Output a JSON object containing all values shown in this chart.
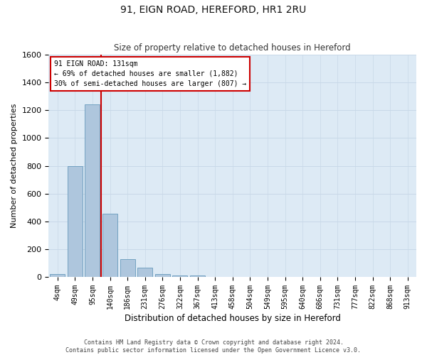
{
  "title": "91, EIGN ROAD, HEREFORD, HR1 2RU",
  "subtitle": "Size of property relative to detached houses in Hereford",
  "xlabel": "Distribution of detached houses by size in Hereford",
  "ylabel": "Number of detached properties",
  "bar_labels": [
    "4sqm",
    "49sqm",
    "95sqm",
    "140sqm",
    "186sqm",
    "231sqm",
    "276sqm",
    "322sqm",
    "367sqm",
    "413sqm",
    "458sqm",
    "504sqm",
    "549sqm",
    "595sqm",
    "640sqm",
    "686sqm",
    "731sqm",
    "777sqm",
    "822sqm",
    "868sqm",
    "913sqm"
  ],
  "bar_values": [
    20,
    800,
    1240,
    455,
    130,
    65,
    22,
    10,
    10,
    0,
    0,
    0,
    0,
    0,
    0,
    0,
    0,
    0,
    0,
    0,
    0
  ],
  "bar_color": "#aec6dd",
  "bar_edge_color": "#6699bb",
  "annotation_line0": "91 EIGN ROAD: 131sqm",
  "annotation_line1": "← 69% of detached houses are smaller (1,882)",
  "annotation_line2": "30% of semi-detached houses are larger (807) →",
  "annotation_box_facecolor": "#ffffff",
  "annotation_box_edgecolor": "#cc0000",
  "vline_color": "#cc0000",
  "ylim": [
    0,
    1600
  ],
  "yticks": [
    0,
    200,
    400,
    600,
    800,
    1000,
    1200,
    1400,
    1600
  ],
  "grid_color": "#c8d8e8",
  "background_color": "#ddeaf5",
  "title_fontsize": 10,
  "subtitle_fontsize": 9,
  "footer_line1": "Contains HM Land Registry data © Crown copyright and database right 2024.",
  "footer_line2": "Contains public sector information licensed under the Open Government Licence v3.0."
}
